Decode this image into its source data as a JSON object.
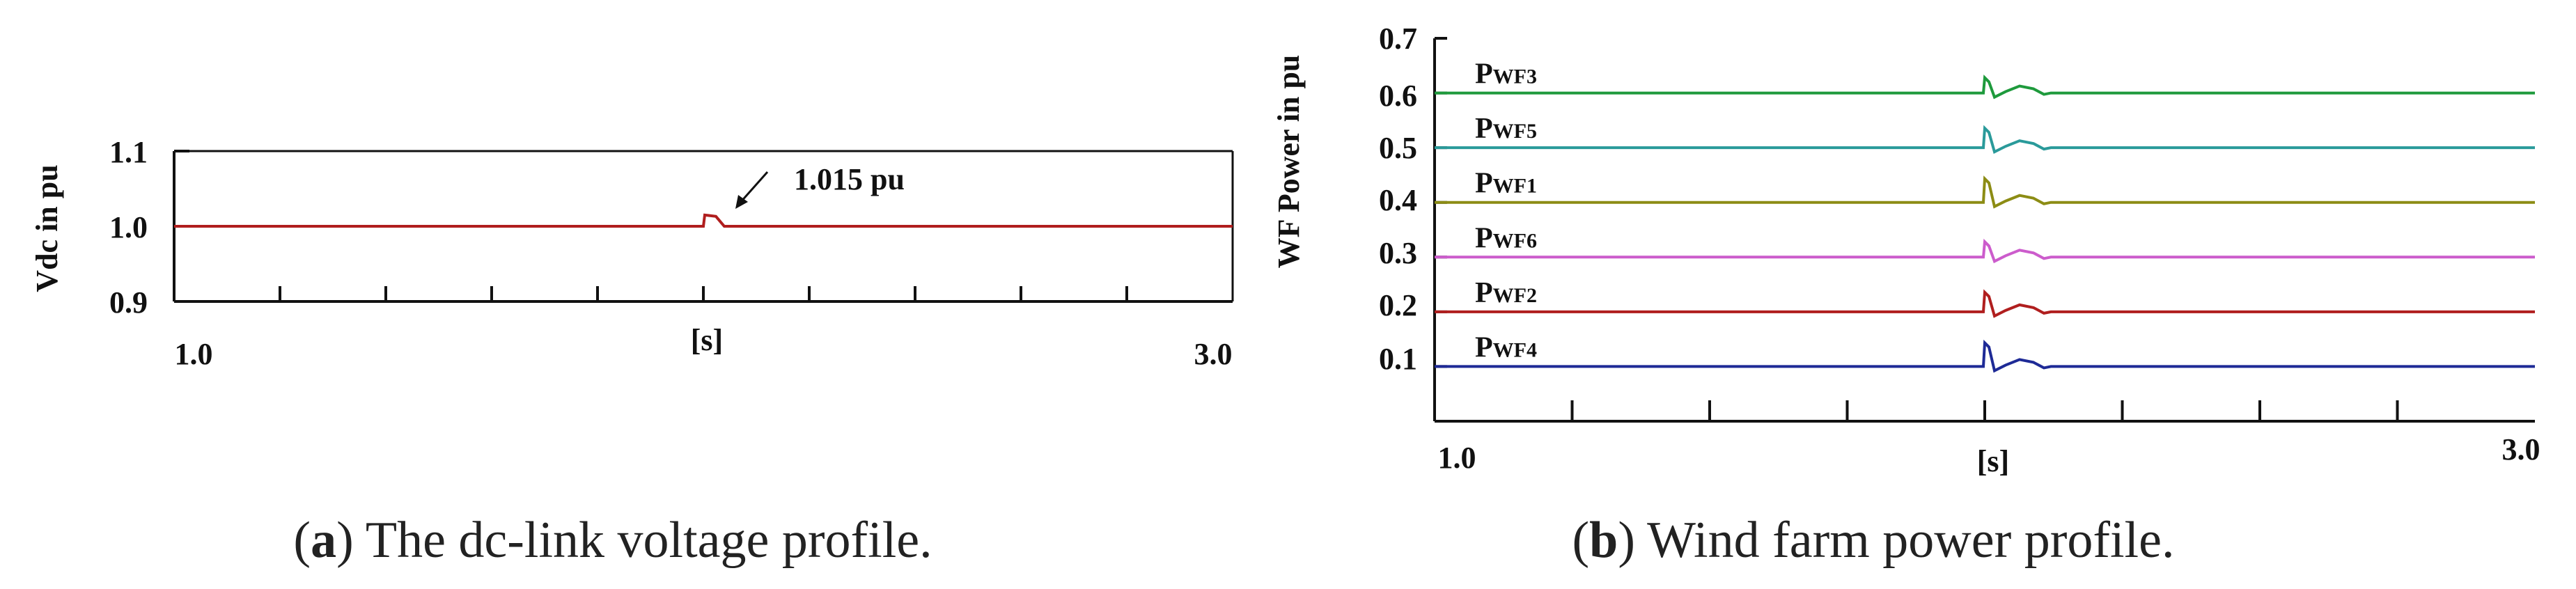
{
  "chart_data": [
    {
      "type": "line",
      "panel": "a",
      "ylabel": "Vdc in pu",
      "xlabel": "[s]",
      "x_range": [
        1.0,
        3.0
      ],
      "x_tick_labels": [
        "1.0",
        "3.0"
      ],
      "ylim": [
        0.9,
        1.1
      ],
      "y_tick_labels": [
        "1.1",
        "1.0",
        "0.9"
      ],
      "grid": false,
      "series": [
        {
          "name": "Vdc",
          "color": "#b01e1e",
          "steady": 1.0,
          "event_time": 2.0,
          "peak": 1.015
        }
      ],
      "annotation": {
        "text": "1.015 pu"
      },
      "caption": {
        "letter": "a",
        "text": " The dc-link voltage profile."
      }
    },
    {
      "type": "line",
      "panel": "b",
      "ylabel": "WF  Power in pu",
      "xlabel": "[s]",
      "x_range": [
        1.0,
        3.0
      ],
      "x_tick_labels": [
        "1.0",
        "3.0"
      ],
      "ylim": [
        0.0,
        0.7
      ],
      "y_tick_labels": [
        "0.7",
        "0.6",
        "0.5",
        "0.4",
        "0.3",
        "0.2",
        "0.1"
      ],
      "grid": false,
      "event_time": 2.0,
      "series": [
        {
          "name": "P",
          "sub": "WF3",
          "color": "#1e9a3c",
          "steady": 0.6
        },
        {
          "name": "P",
          "sub": "WF5",
          "color": "#2a9a9a",
          "steady": 0.5
        },
        {
          "name": "P",
          "sub": "WF1",
          "color": "#8c8c14",
          "steady": 0.4
        },
        {
          "name": "P",
          "sub": "WF6",
          "color": "#cc5ccc",
          "steady": 0.3
        },
        {
          "name": "P",
          "sub": "WF2",
          "color": "#b01e1e",
          "steady": 0.2
        },
        {
          "name": "P",
          "sub": "WF4",
          "color": "#1e2a96",
          "steady": 0.1
        }
      ],
      "caption": {
        "letter": "b",
        "text": " Wind farm power profile."
      }
    }
  ]
}
